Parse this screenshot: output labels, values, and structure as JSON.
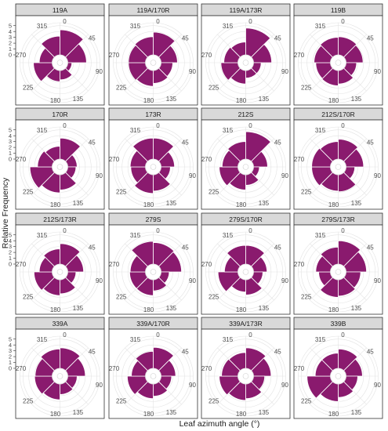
{
  "chart_data": {
    "type": "polar-bar",
    "xlabel": "Leaf azimuth angle (°)",
    "ylabel": "Relative Frequency",
    "angle_ticks": [
      "0",
      "45",
      "90",
      "135",
      "180",
      "225",
      "270",
      "315"
    ],
    "r_ticks": [
      "0",
      "1",
      "2",
      "3",
      "4",
      "5"
    ],
    "r_max": 5.5,
    "bin_starts_deg": [
      0,
      45,
      90,
      135,
      180,
      225,
      270,
      315
    ],
    "bar_color": "#8a1a6e",
    "bar_edge": "#ffffff",
    "panels": [
      {
        "label": "119A",
        "values": [
          4.3,
          3.2,
          0.7,
          1.6,
          1.9,
          3.2,
          2.2,
          3.2
        ]
      },
      {
        "label": "119A/170R",
        "values": [
          3.9,
          2.8,
          2.0,
          2.2,
          2.7,
          2.9,
          2.9,
          3.1
        ]
      },
      {
        "label": "119A/173R",
        "values": [
          4.6,
          3.1,
          1.3,
          1.3,
          2.3,
          2.9,
          2.4,
          2.2
        ]
      },
      {
        "label": "119B",
        "values": [
          3.1,
          2.9,
          1.8,
          2.3,
          2.6,
          2.5,
          2.8,
          3.0
        ]
      },
      {
        "label": "170R",
        "values": [
          3.6,
          1.6,
          1.4,
          2.6,
          3.1,
          3.8,
          2.5,
          2.2
        ]
      },
      {
        "label": "173R",
        "values": [
          3.6,
          2.3,
          1.6,
          2.8,
          3.2,
          2.5,
          2.6,
          3.6
        ]
      },
      {
        "label": "212S",
        "values": [
          4.7,
          2.4,
          1.0,
          1.8,
          2.6,
          3.2,
          2.7,
          3.0
        ]
      },
      {
        "label": "212S/170R",
        "values": [
          3.4,
          3.0,
          1.5,
          2.9,
          2.8,
          3.2,
          3.2,
          3.0
        ]
      },
      {
        "label": "212S/173R",
        "values": [
          3.5,
          2.7,
          1.4,
          2.4,
          2.7,
          3.1,
          2.2,
          2.6
        ]
      },
      {
        "label": "279S",
        "values": [
          3.7,
          3.5,
          1.4,
          1.9,
          2.7,
          2.7,
          2.6,
          3.9
        ]
      },
      {
        "label": "279S/170R",
        "values": [
          3.2,
          2.3,
          1.6,
          2.6,
          2.1,
          3.4,
          2.3,
          3.2
        ]
      },
      {
        "label": "279S/173R",
        "values": [
          4.0,
          3.5,
          2.5,
          2.8,
          3.0,
          2.0,
          2.5,
          2.9
        ]
      },
      {
        "label": "339A",
        "values": [
          3.5,
          3.0,
          1.6,
          1.8,
          2.7,
          3.0,
          2.9,
          3.3
        ]
      },
      {
        "label": "339A/170R",
        "values": [
          3.6,
          2.5,
          1.8,
          2.1,
          2.5,
          3.1,
          2.4,
          2.9
        ]
      },
      {
        "label": "339A/173R",
        "values": [
          3.5,
          3.0,
          1.9,
          2.5,
          2.8,
          3.2,
          2.8,
          2.7
        ]
      },
      {
        "label": "339B",
        "values": [
          3.3,
          2.8,
          2.0,
          2.3,
          3.0,
          4.0,
          2.6,
          2.6
        ]
      }
    ]
  }
}
